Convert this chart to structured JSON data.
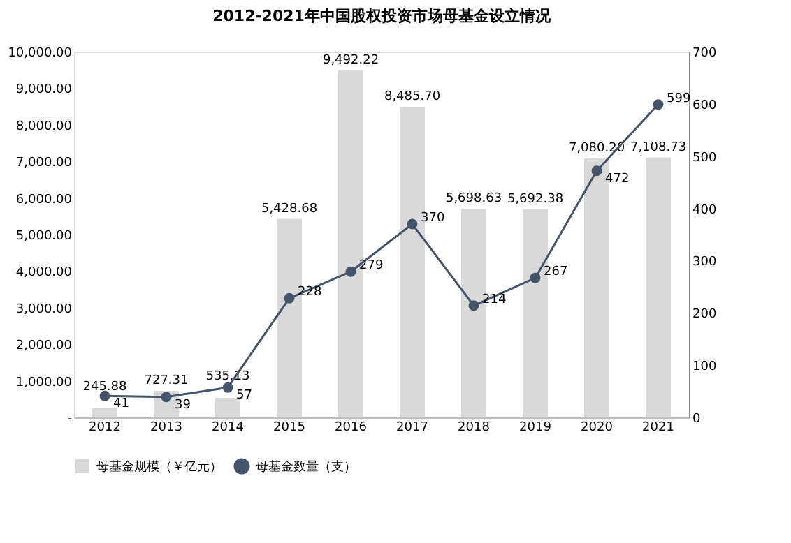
{
  "chart_data": {
    "type": "bar",
    "title": "2012-2021年中国股权投资市场母基金设立情况",
    "categories": [
      "2012",
      "2013",
      "2014",
      "2015",
      "2016",
      "2017",
      "2018",
      "2019",
      "2020",
      "2021"
    ],
    "series": [
      {
        "name": "母基金规模（￥亿元）",
        "color": "#d9d9d9",
        "values": [
          245.88,
          727.31,
          535.13,
          5428.68,
          9492.22,
          8485.7,
          5698.63,
          5692.38,
          7080.2,
          7108.73
        ],
        "value_labels": [
          "245.88",
          "727.31",
          "535.13",
          "5,428.68",
          "9,492.22",
          "8,485.70",
          "5,698.63",
          "5,692.38",
          "7,080.20",
          "7,108.73"
        ]
      },
      {
        "name": "母基金数量（支）",
        "color": "#44546a",
        "type": "line",
        "axis": "y2",
        "marker": "circle",
        "values": [
          41,
          39,
          57,
          228,
          279,
          370,
          214,
          267,
          472,
          599
        ],
        "value_labels": [
          "41",
          "39",
          "57",
          "228",
          "279",
          "370",
          "214",
          "267",
          "472",
          "599"
        ]
      }
    ],
    "ylim": [
      0,
      10000
    ],
    "yticks": [
      {
        "value": 0,
        "label": "-"
      },
      {
        "value": 1000,
        "label": "1,000.00"
      },
      {
        "value": 2000,
        "label": "2,000.00"
      },
      {
        "value": 3000,
        "label": "3,000.00"
      },
      {
        "value": 4000,
        "label": "4,000.00"
      },
      {
        "value": 5000,
        "label": "5,000.00"
      },
      {
        "value": 6000,
        "label": "6,000.00"
      },
      {
        "value": 7000,
        "label": "7,000.00"
      },
      {
        "value": 8000,
        "label": "8,000.00"
      },
      {
        "value": 9000,
        "label": "9,000.00"
      },
      {
        "value": 10000,
        "label": "10,000.00"
      }
    ],
    "y2lim": [
      0,
      700
    ],
    "y2ticks": [
      0,
      100,
      200,
      300,
      400,
      500,
      600,
      700
    ],
    "legend": "bottom",
    "grid": false
  }
}
